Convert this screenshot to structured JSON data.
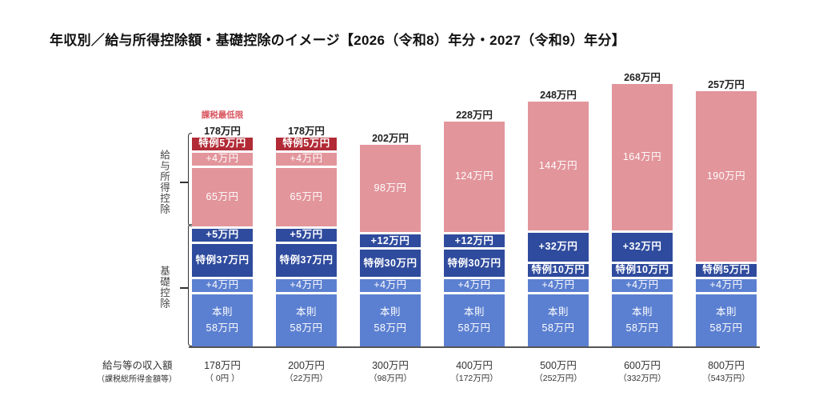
{
  "colors": {
    "special-red": "#b12a35",
    "pink": "#e2959b",
    "dark-blue": "#2f4b9d",
    "mid-blue": "#5c80d1",
    "annotation": "#d9545e"
  },
  "row_header": {
    "income_label": "給与等の収入額",
    "taxable_label": "（課税総所得金額等）"
  },
  "groups": {
    "kyuyo": "給与所得控除",
    "kiso": "基礎控除"
  },
  "chart_data": {
    "type": "bar",
    "stacked": true,
    "title": "年収別／給与所得控除額・基礎控除のイメージ【2026（令和8）年分・2027（令和9）年分】",
    "xlabel": "給与等の収入額（課税総所得金額等）",
    "ylabel": "",
    "grid": false,
    "legend": "none",
    "categories": [
      "178万円",
      "200万円",
      "300万円",
      "400万円",
      "500万円",
      "600万円",
      "800万円"
    ],
    "sub_categories": [
      "（ 0円 ）",
      "（22万円）",
      "（98万円）",
      "（172万円）",
      "（252万円）",
      "（332万円）",
      "（543万円）"
    ],
    "totals": [
      178,
      178,
      202,
      228,
      248,
      268,
      257
    ],
    "total_labels": [
      "178万円",
      "178万円",
      "202万円",
      "228万円",
      "248万円",
      "268万円",
      "257万円"
    ],
    "annotation": {
      "text": "課税最低限",
      "bar_index": 0
    },
    "bars": [
      {
        "segments": [
          {
            "label": "本則\n58万円",
            "value": 58,
            "group": "kiso",
            "kind": "mid-blue"
          },
          {
            "label": "+4万円",
            "value": 4,
            "group": "kiso",
            "kind": "mid-blue"
          },
          {
            "label": "特例37万円",
            "value": 37,
            "group": "kiso",
            "kind": "dark-blue"
          },
          {
            "label": "+5万円",
            "value": 5,
            "group": "kiso",
            "kind": "dark-blue"
          },
          {
            "label": "65万円",
            "value": 65,
            "group": "kyuyo",
            "kind": "pink"
          },
          {
            "label": "+4万円",
            "value": 4,
            "group": "kyuyo",
            "kind": "pink"
          },
          {
            "label": "特例5万円",
            "value": 5,
            "group": "kyuyo",
            "kind": "special-red"
          }
        ]
      },
      {
        "segments": [
          {
            "label": "本則\n58万円",
            "value": 58,
            "group": "kiso",
            "kind": "mid-blue"
          },
          {
            "label": "+4万円",
            "value": 4,
            "group": "kiso",
            "kind": "mid-blue"
          },
          {
            "label": "特例37万円",
            "value": 37,
            "group": "kiso",
            "kind": "dark-blue"
          },
          {
            "label": "+5万円",
            "value": 5,
            "group": "kiso",
            "kind": "dark-blue"
          },
          {
            "label": "65万円",
            "value": 65,
            "group": "kyuyo",
            "kind": "pink"
          },
          {
            "label": "+4万円",
            "value": 4,
            "group": "kyuyo",
            "kind": "pink"
          },
          {
            "label": "特例5万円",
            "value": 5,
            "group": "kyuyo",
            "kind": "special-red"
          }
        ]
      },
      {
        "segments": [
          {
            "label": "本則\n58万円",
            "value": 58,
            "group": "kiso",
            "kind": "mid-blue"
          },
          {
            "label": "+4万円",
            "value": 4,
            "group": "kiso",
            "kind": "mid-blue"
          },
          {
            "label": "特例30万円",
            "value": 30,
            "group": "kiso",
            "kind": "dark-blue"
          },
          {
            "label": "+12万円",
            "value": 12,
            "group": "kiso",
            "kind": "dark-blue"
          },
          {
            "label": "98万円",
            "value": 98,
            "group": "kyuyo",
            "kind": "pink"
          }
        ]
      },
      {
        "segments": [
          {
            "label": "本則\n58万円",
            "value": 58,
            "group": "kiso",
            "kind": "mid-blue"
          },
          {
            "label": "+4万円",
            "value": 4,
            "group": "kiso",
            "kind": "mid-blue"
          },
          {
            "label": "特例30万円",
            "value": 30,
            "group": "kiso",
            "kind": "dark-blue"
          },
          {
            "label": "+12万円",
            "value": 12,
            "group": "kiso",
            "kind": "dark-blue"
          },
          {
            "label": "124万円",
            "value": 124,
            "group": "kyuyo",
            "kind": "pink"
          }
        ]
      },
      {
        "segments": [
          {
            "label": "本則\n58万円",
            "value": 58,
            "group": "kiso",
            "kind": "mid-blue"
          },
          {
            "label": "+4万円",
            "value": 4,
            "group": "kiso",
            "kind": "mid-blue"
          },
          {
            "label": "特例10万円",
            "value": 10,
            "group": "kiso",
            "kind": "dark-blue"
          },
          {
            "label": "+32万円",
            "value": 32,
            "group": "kiso",
            "kind": "dark-blue"
          },
          {
            "label": "144万円",
            "value": 144,
            "group": "kyuyo",
            "kind": "pink"
          }
        ]
      },
      {
        "segments": [
          {
            "label": "本則\n58万円",
            "value": 58,
            "group": "kiso",
            "kind": "mid-blue"
          },
          {
            "label": "+4万円",
            "value": 4,
            "group": "kiso",
            "kind": "mid-blue"
          },
          {
            "label": "特例10万円",
            "value": 10,
            "group": "kiso",
            "kind": "dark-blue"
          },
          {
            "label": "+32万円",
            "value": 32,
            "group": "kiso",
            "kind": "dark-blue"
          },
          {
            "label": "164万円",
            "value": 164,
            "group": "kyuyo",
            "kind": "pink"
          }
        ]
      },
      {
        "segments": [
          {
            "label": "本則\n58万円",
            "value": 58,
            "group": "kiso",
            "kind": "mid-blue"
          },
          {
            "label": "+4万円",
            "value": 4,
            "group": "kiso",
            "kind": "mid-blue"
          },
          {
            "label": "特例5万円",
            "value": 5,
            "group": "kiso",
            "kind": "dark-blue"
          },
          {
            "label": "190万円",
            "value": 190,
            "group": "kyuyo",
            "kind": "pink"
          }
        ]
      }
    ]
  }
}
